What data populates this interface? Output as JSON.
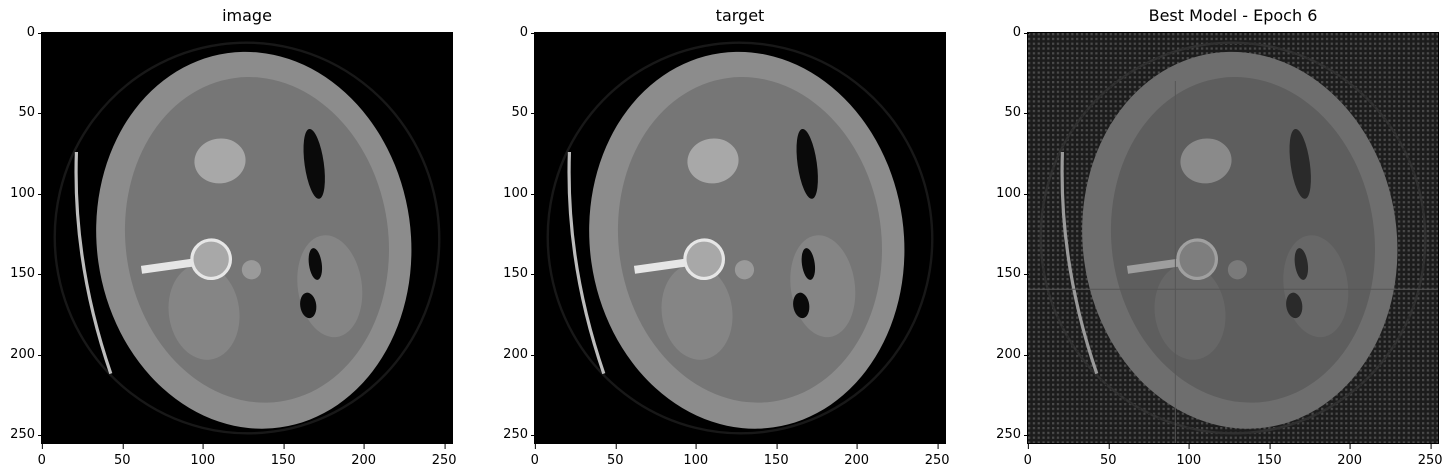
{
  "panels": [
    {
      "title": "image",
      "kind": "ct"
    },
    {
      "title": "target",
      "kind": "ct"
    },
    {
      "title": "Best Model - Epoch 6",
      "kind": "noisy"
    }
  ],
  "axes": {
    "xticks": [
      "0",
      "50",
      "100",
      "150",
      "200",
      "250"
    ],
    "yticks": [
      "0",
      "50",
      "100",
      "150",
      "200",
      "250"
    ],
    "xtick_values": [
      0,
      50,
      100,
      150,
      200,
      250
    ],
    "ytick_values": [
      0,
      50,
      100,
      150,
      200,
      250
    ],
    "range": [
      0,
      256
    ]
  },
  "colors": {
    "background": "#000000",
    "tissue": "#8a8a8a",
    "bone": "#e6e6e6",
    "air": "#0a0a0a"
  }
}
